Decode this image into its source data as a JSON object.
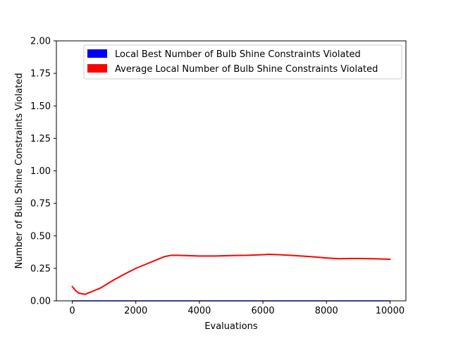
{
  "chart_data": {
    "type": "line",
    "title": "",
    "xlabel": "Evaluations",
    "ylabel": "Number of Bulb Shine Constraints Violated",
    "xlim": [
      -500,
      10500
    ],
    "ylim": [
      0,
      2.0
    ],
    "xticks": [
      0,
      2000,
      4000,
      6000,
      8000,
      10000
    ],
    "xtick_labels": [
      "0",
      "2000",
      "4000",
      "6000",
      "8000",
      "10000"
    ],
    "yticks": [
      0.0,
      0.25,
      0.5,
      0.75,
      1.0,
      1.25,
      1.5,
      1.75,
      2.0
    ],
    "ytick_labels": [
      "0.00",
      "0.25",
      "0.50",
      "0.75",
      "1.00",
      "1.25",
      "1.50",
      "1.75",
      "2.00"
    ],
    "grid": false,
    "legend_position": "top-right",
    "series": [
      {
        "name": "Local Best Number of Bulb Shine Constraints Violated",
        "color": "#0000ff",
        "x": [
          0,
          10000
        ],
        "y": [
          0,
          0
        ]
      },
      {
        "name": "Average Local Number of Bulb Shine Constraints Violated",
        "color": "#ff0000",
        "x": [
          0,
          100,
          200,
          300,
          400,
          500,
          700,
          900,
          1100,
          1300,
          1600,
          2000,
          2400,
          2700,
          2900,
          3100,
          3300,
          3600,
          4000,
          4500,
          5000,
          5500,
          6000,
          6200,
          6500,
          7000,
          7500,
          8000,
          8400,
          8700,
          9000,
          9500,
          10000
        ],
        "y": [
          0.11,
          0.08,
          0.06,
          0.055,
          0.05,
          0.06,
          0.08,
          0.1,
          0.13,
          0.16,
          0.2,
          0.25,
          0.29,
          0.32,
          0.34,
          0.35,
          0.35,
          0.348,
          0.345,
          0.345,
          0.348,
          0.35,
          0.355,
          0.358,
          0.355,
          0.348,
          0.34,
          0.33,
          0.324,
          0.326,
          0.326,
          0.324,
          0.32
        ]
      }
    ]
  }
}
